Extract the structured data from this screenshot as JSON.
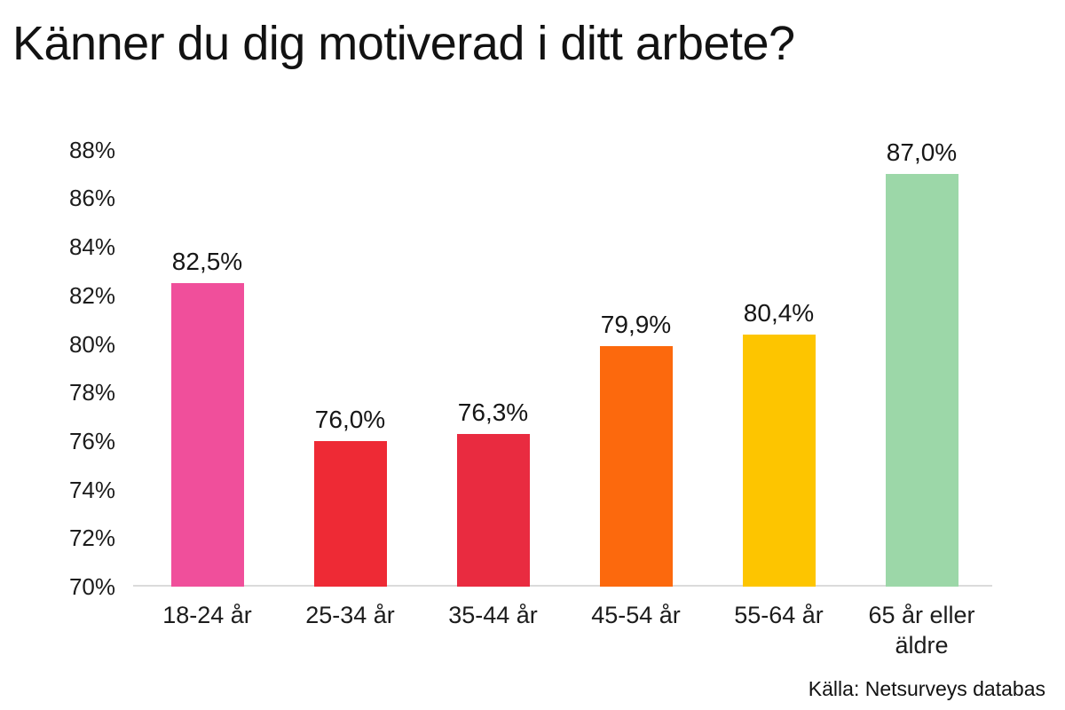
{
  "title": "Känner du dig motiverad i ditt arbete?",
  "source": "Källa: Netsurveys databas",
  "chart_data": {
    "type": "bar",
    "title": "Känner du dig motiverad i ditt arbete?",
    "categories": [
      "18-24 år",
      "25-34 år",
      "35-44 år",
      "45-54 år",
      "55-64 år",
      "65 år eller äldre"
    ],
    "values": [
      82.5,
      76.0,
      76.3,
      79.9,
      80.4,
      87.0
    ],
    "value_labels": [
      "82,5%",
      "76,0%",
      "76,3%",
      "79,9%",
      "80,4%",
      "87,0%"
    ],
    "bar_colors": [
      "#F04F9B",
      "#EE2A35",
      "#E92B40",
      "#FC690D",
      "#FDC500",
      "#9CD7A8"
    ],
    "xlabel": "",
    "ylabel": "",
    "ylim": [
      70,
      88
    ],
    "ytick_step": 2,
    "ytick_labels": [
      "70%",
      "72%",
      "74%",
      "76%",
      "78%",
      "80%",
      "82%",
      "84%",
      "86%",
      "88%"
    ],
    "grid": false,
    "legend": false,
    "axis_line_color": "#dbdbdb",
    "source": "Källa: Netsurveys databas"
  }
}
